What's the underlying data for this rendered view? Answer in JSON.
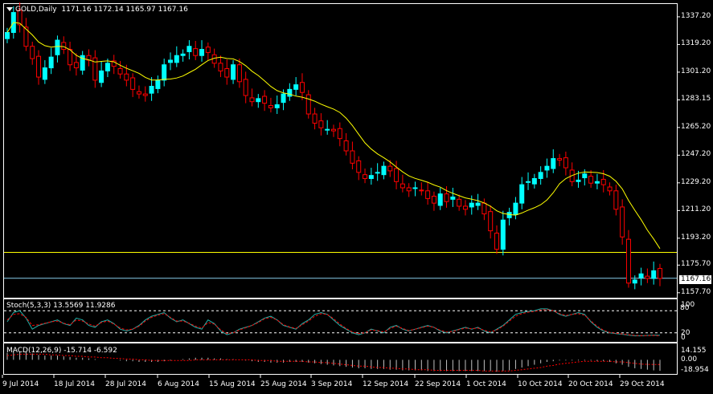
{
  "header": {
    "symbol": "GOLD,Daily",
    "ohlc": "1171.16 1172.14 1165.97 1167.16"
  },
  "price_axis": [
    "1337.20",
    "1319.20",
    "1301.20",
    "1283.15",
    "1265.20",
    "1247.20",
    "1229.20",
    "1211.20",
    "1193.20",
    "1175.70",
    "1157.70"
  ],
  "current_price": "1167.16",
  "stoch": {
    "title": "Stoch(5,3,3) 13.5569 11.9286",
    "levels": [
      "100",
      "80",
      "20",
      "0"
    ]
  },
  "macd": {
    "title": "MACD(12,26,9) -15.714 -6.592",
    "levels": [
      "14.155",
      "0.00",
      "-18.954"
    ]
  },
  "dates": [
    "9 Jul 2014",
    "18 Jul 2014",
    "28 Jul 2014",
    "6 Aug 2014",
    "15 Aug 2014",
    "25 Aug 2014",
    "3 Sep 2014",
    "12 Sep 2014",
    "22 Sep 2014",
    "1 Oct 2014",
    "10 Oct 2014",
    "20 Oct 2014",
    "29 Oct 2014"
  ],
  "colors": {
    "up": "#00ffff",
    "down": "#ff0000",
    "ma": "#ffff00",
    "stoch_main": "#20b2aa",
    "stoch_signal": "#ff0000",
    "macd_hist": "#c0c0c0",
    "macd_signal": "#ff0000",
    "hline": "#ffff00",
    "bid_line": "#87ceeb"
  },
  "chart_data": {
    "type": "candlestick",
    "title": "GOLD,Daily",
    "ylim": [
      1155,
      1345
    ],
    "horizontal_line": 1184,
    "closes": [
      1327,
      1340,
      1332,
      1318,
      1310,
      1298,
      1304,
      1311,
      1322,
      1316,
      1306,
      1304,
      1312,
      1309,
      1296,
      1302,
      1307,
      1305,
      1300,
      1296,
      1290,
      1287,
      1286,
      1292,
      1296,
      1306,
      1309,
      1312,
      1313,
      1318,
      1312,
      1316,
      1314,
      1307,
      1302,
      1298,
      1306,
      1295,
      1286,
      1282,
      1284,
      1281,
      1278,
      1280,
      1287,
      1290,
      1293,
      1288,
      1274,
      1268,
      1265,
      1264,
      1263,
      1258,
      1250,
      1242,
      1236,
      1232,
      1234,
      1236,
      1240,
      1237,
      1230,
      1226,
      1224,
      1226,
      1224,
      1219,
      1216,
      1222,
      1217,
      1220,
      1214,
      1212,
      1216,
      1216,
      1209,
      1198,
      1186,
      1205,
      1210,
      1216,
      1228,
      1230,
      1232,
      1236,
      1240,
      1245,
      1244,
      1239,
      1230,
      1231,
      1235,
      1229,
      1230,
      1228,
      1224,
      1212,
      1194,
      1164,
      1166,
      1170,
      1167,
      1172,
      1167
    ],
    "stoch_k": [
      50,
      75,
      80,
      60,
      30,
      40,
      45,
      50,
      55,
      45,
      40,
      60,
      55,
      40,
      35,
      50,
      55,
      45,
      30,
      25,
      30,
      40,
      55,
      65,
      70,
      75,
      60,
      50,
      55,
      45,
      35,
      30,
      55,
      45,
      25,
      15,
      20,
      30,
      35,
      40,
      50,
      60,
      65,
      55,
      40,
      35,
      30,
      45,
      55,
      70,
      75,
      70,
      55,
      40,
      30,
      20,
      15,
      20,
      30,
      25,
      20,
      35,
      40,
      30,
      25,
      30,
      35,
      40,
      35,
      25,
      20,
      25,
      30,
      35,
      30,
      35,
      25,
      20,
      30,
      40,
      55,
      70,
      75,
      78,
      80,
      85,
      85,
      80,
      70,
      65,
      70,
      75,
      70,
      50,
      35,
      25,
      20,
      18,
      16,
      14,
      12,
      12,
      13,
      14,
      13.5
    ],
    "stoch_d": [
      55,
      70,
      72,
      62,
      40,
      42,
      46,
      50,
      52,
      46,
      42,
      55,
      52,
      44,
      38,
      48,
      52,
      44,
      33,
      28,
      30,
      38,
      52,
      62,
      68,
      72,
      62,
      52,
      52,
      46,
      38,
      33,
      48,
      44,
      28,
      18,
      20,
      28,
      34,
      40,
      48,
      58,
      62,
      55,
      42,
      36,
      32,
      42,
      52,
      65,
      72,
      70,
      58,
      44,
      32,
      22,
      18,
      20,
      28,
      26,
      22,
      32,
      38,
      32,
      26,
      30,
      34,
      38,
      35,
      27,
      22,
      24,
      29,
      33,
      31,
      33,
      27,
      22,
      28,
      38,
      52,
      65,
      72,
      76,
      78,
      82,
      83,
      80,
      72,
      67,
      70,
      72,
      68,
      52,
      38,
      27,
      21,
      19,
      17,
      15,
      13,
      12.5,
      12.5,
      13,
      12
    ],
    "macd_hist": [
      10,
      12,
      12,
      11,
      9,
      7,
      6,
      6,
      6,
      5,
      4,
      3,
      3,
      2,
      1,
      0,
      0,
      0,
      -1,
      -2,
      -2,
      -3,
      -3,
      -3,
      -3,
      -2,
      -1,
      0,
      1,
      2,
      3,
      3,
      3,
      2,
      2,
      1,
      1,
      0,
      -1,
      -2,
      -3,
      -3,
      -4,
      -4,
      -4,
      -3,
      -3,
      -3,
      -4,
      -5,
      -6,
      -7,
      -8,
      -9,
      -10,
      -11,
      -12,
      -12,
      -13,
      -13,
      -13,
      -14,
      -14,
      -15,
      -15,
      -15,
      -15,
      -16,
      -16,
      -16,
      -16,
      -16,
      -16,
      -16,
      -16,
      -16,
      -16,
      -16,
      -17,
      -16,
      -15,
      -13,
      -11,
      -9,
      -7,
      -5,
      -3,
      -2,
      -1,
      -1,
      -1,
      -1,
      -1,
      -1,
      -2,
      -2,
      -3,
      -5,
      -7,
      -10,
      -12,
      -13,
      -14,
      -15,
      -15.7
    ],
    "macd_signal": [
      6,
      7,
      8,
      8,
      8,
      8,
      8,
      7,
      7,
      6,
      6,
      5,
      5,
      4,
      4,
      3,
      3,
      2,
      2,
      1,
      1,
      0,
      0,
      -1,
      -1,
      -1,
      -1,
      -1,
      -1,
      -1,
      0,
      0,
      0,
      0,
      0,
      0,
      0,
      0,
      0,
      0,
      -1,
      -1,
      -1,
      -2,
      -2,
      -2,
      -2,
      -2,
      -3,
      -3,
      -4,
      -4,
      -5,
      -6,
      -7,
      -8,
      -9,
      -9,
      -10,
      -11,
      -11,
      -12,
      -12,
      -13,
      -13,
      -14,
      -14,
      -14,
      -15,
      -15,
      -15,
      -15,
      -15,
      -15,
      -15,
      -15,
      -16,
      -16,
      -16,
      -16,
      -16,
      -15,
      -14,
      -13,
      -12,
      -11,
      -9,
      -8,
      -6,
      -5,
      -4,
      -3,
      -2,
      -2,
      -2,
      -2,
      -2,
      -3,
      -3,
      -4,
      -5,
      -6,
      -6.5,
      -6.6,
      -6.59
    ]
  }
}
